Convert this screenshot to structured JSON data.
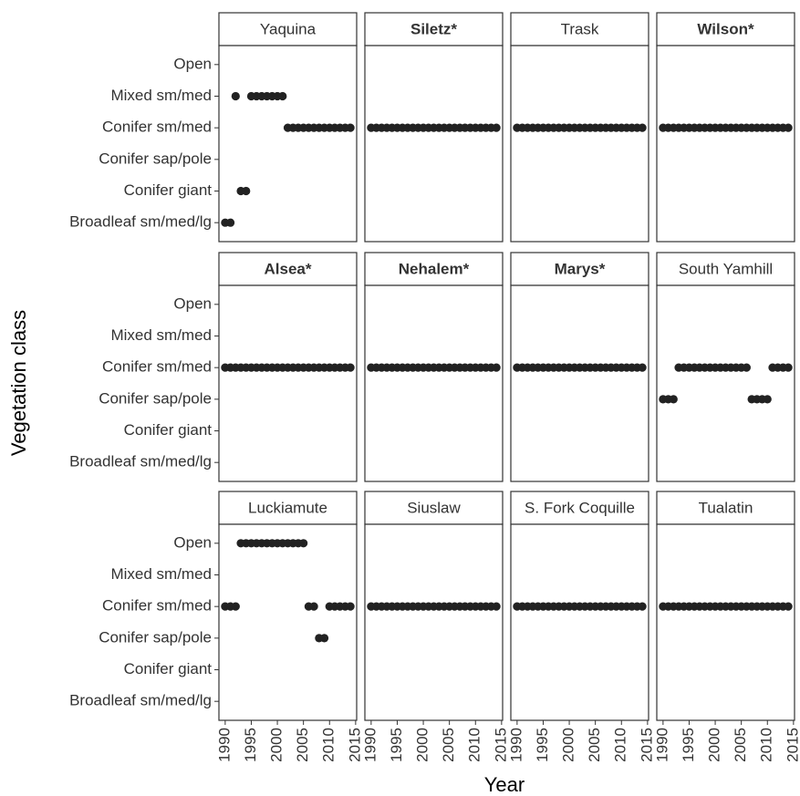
{
  "chart_data": {
    "type": "dot",
    "xlabel": "Year",
    "ylabel": "Vegetation class",
    "color": "#222222",
    "categories": [
      "Open",
      "Mixed sm/med",
      "Conifer sm/med",
      "Conifer sap/pole",
      "Conifer giant",
      "Broadleaf sm/med/lg"
    ],
    "xlim": [
      1988.8,
      2015.2
    ],
    "xticks": [
      1990,
      1995,
      2000,
      2005,
      2010,
      2015
    ],
    "x": [
      1990,
      1991,
      1992,
      1993,
      1994,
      1995,
      1996,
      1997,
      1998,
      1999,
      2000,
      2001,
      2002,
      2003,
      2004,
      2005,
      2006,
      2007,
      2008,
      2009,
      2010,
      2011,
      2012,
      2013,
      2014
    ],
    "panels": [
      {
        "title": "Yaquina",
        "bold": false,
        "values": [
          "Broadleaf sm/med/lg",
          "Broadleaf sm/med/lg",
          "Mixed sm/med",
          "Conifer giant",
          "Conifer giant",
          "Mixed sm/med",
          "Mixed sm/med",
          "Mixed sm/med",
          "Mixed sm/med",
          "Mixed sm/med",
          "Mixed sm/med",
          "Mixed sm/med",
          "Conifer sm/med",
          "Conifer sm/med",
          "Conifer sm/med",
          "Conifer sm/med",
          "Conifer sm/med",
          "Conifer sm/med",
          "Conifer sm/med",
          "Conifer sm/med",
          "Conifer sm/med",
          "Conifer sm/med",
          "Conifer sm/med",
          "Conifer sm/med",
          "Conifer sm/med"
        ]
      },
      {
        "title": "Siletz*",
        "bold": true,
        "values": [
          "Conifer sm/med",
          "Conifer sm/med",
          "Conifer sm/med",
          "Conifer sm/med",
          "Conifer sm/med",
          "Conifer sm/med",
          "Conifer sm/med",
          "Conifer sm/med",
          "Conifer sm/med",
          "Conifer sm/med",
          "Conifer sm/med",
          "Conifer sm/med",
          "Conifer sm/med",
          "Conifer sm/med",
          "Conifer sm/med",
          "Conifer sm/med",
          "Conifer sm/med",
          "Conifer sm/med",
          "Conifer sm/med",
          "Conifer sm/med",
          "Conifer sm/med",
          "Conifer sm/med",
          "Conifer sm/med",
          "Conifer sm/med",
          "Conifer sm/med"
        ]
      },
      {
        "title": "Trask",
        "bold": false,
        "values": [
          "Conifer sm/med",
          "Conifer sm/med",
          "Conifer sm/med",
          "Conifer sm/med",
          "Conifer sm/med",
          "Conifer sm/med",
          "Conifer sm/med",
          "Conifer sm/med",
          "Conifer sm/med",
          "Conifer sm/med",
          "Conifer sm/med",
          "Conifer sm/med",
          "Conifer sm/med",
          "Conifer sm/med",
          "Conifer sm/med",
          "Conifer sm/med",
          "Conifer sm/med",
          "Conifer sm/med",
          "Conifer sm/med",
          "Conifer sm/med",
          "Conifer sm/med",
          "Conifer sm/med",
          "Conifer sm/med",
          "Conifer sm/med",
          "Conifer sm/med"
        ]
      },
      {
        "title": "Wilson*",
        "bold": true,
        "values": [
          "Conifer sm/med",
          "Conifer sm/med",
          "Conifer sm/med",
          "Conifer sm/med",
          "Conifer sm/med",
          "Conifer sm/med",
          "Conifer sm/med",
          "Conifer sm/med",
          "Conifer sm/med",
          "Conifer sm/med",
          "Conifer sm/med",
          "Conifer sm/med",
          "Conifer sm/med",
          "Conifer sm/med",
          "Conifer sm/med",
          "Conifer sm/med",
          "Conifer sm/med",
          "Conifer sm/med",
          "Conifer sm/med",
          "Conifer sm/med",
          "Conifer sm/med",
          "Conifer sm/med",
          "Conifer sm/med",
          "Conifer sm/med",
          "Conifer sm/med"
        ]
      },
      {
        "title": "Alsea*",
        "bold": true,
        "values": [
          "Conifer sm/med",
          "Conifer sm/med",
          "Conifer sm/med",
          "Conifer sm/med",
          "Conifer sm/med",
          "Conifer sm/med",
          "Conifer sm/med",
          "Conifer sm/med",
          "Conifer sm/med",
          "Conifer sm/med",
          "Conifer sm/med",
          "Conifer sm/med",
          "Conifer sm/med",
          "Conifer sm/med",
          "Conifer sm/med",
          "Conifer sm/med",
          "Conifer sm/med",
          "Conifer sm/med",
          "Conifer sm/med",
          "Conifer sm/med",
          "Conifer sm/med",
          "Conifer sm/med",
          "Conifer sm/med",
          "Conifer sm/med",
          "Conifer sm/med"
        ]
      },
      {
        "title": "Nehalem*",
        "bold": true,
        "values": [
          "Conifer sm/med",
          "Conifer sm/med",
          "Conifer sm/med",
          "Conifer sm/med",
          "Conifer sm/med",
          "Conifer sm/med",
          "Conifer sm/med",
          "Conifer sm/med",
          "Conifer sm/med",
          "Conifer sm/med",
          "Conifer sm/med",
          "Conifer sm/med",
          "Conifer sm/med",
          "Conifer sm/med",
          "Conifer sm/med",
          "Conifer sm/med",
          "Conifer sm/med",
          "Conifer sm/med",
          "Conifer sm/med",
          "Conifer sm/med",
          "Conifer sm/med",
          "Conifer sm/med",
          "Conifer sm/med",
          "Conifer sm/med",
          "Conifer sm/med"
        ]
      },
      {
        "title": "Marys*",
        "bold": true,
        "values": [
          "Conifer sm/med",
          "Conifer sm/med",
          "Conifer sm/med",
          "Conifer sm/med",
          "Conifer sm/med",
          "Conifer sm/med",
          "Conifer sm/med",
          "Conifer sm/med",
          "Conifer sm/med",
          "Conifer sm/med",
          "Conifer sm/med",
          "Conifer sm/med",
          "Conifer sm/med",
          "Conifer sm/med",
          "Conifer sm/med",
          "Conifer sm/med",
          "Conifer sm/med",
          "Conifer sm/med",
          "Conifer sm/med",
          "Conifer sm/med",
          "Conifer sm/med",
          "Conifer sm/med",
          "Conifer sm/med",
          "Conifer sm/med",
          "Conifer sm/med"
        ]
      },
      {
        "title": "South Yamhill",
        "bold": false,
        "values": [
          "Conifer sap/pole",
          "Conifer sap/pole",
          "Conifer sap/pole",
          "Conifer sm/med",
          "Conifer sm/med",
          "Conifer sm/med",
          "Conifer sm/med",
          "Conifer sm/med",
          "Conifer sm/med",
          "Conifer sm/med",
          "Conifer sm/med",
          "Conifer sm/med",
          "Conifer sm/med",
          "Conifer sm/med",
          "Conifer sm/med",
          "Conifer sm/med",
          "Conifer sm/med",
          "Conifer sap/pole",
          "Conifer sap/pole",
          "Conifer sap/pole",
          "Conifer sap/pole",
          "Conifer sm/med",
          "Conifer sm/med",
          "Conifer sm/med",
          "Conifer sm/med"
        ]
      },
      {
        "title": "Luckiamute",
        "bold": false,
        "values": [
          "Conifer sm/med",
          "Conifer sm/med",
          "Conifer sm/med",
          "Open",
          "Open",
          "Open",
          "Open",
          "Open",
          "Open",
          "Open",
          "Open",
          "Open",
          "Open",
          "Open",
          "Open",
          "Open",
          "Conifer sm/med",
          "Conifer sm/med",
          "Conifer sap/pole",
          "Conifer sap/pole",
          "Conifer sm/med",
          "Conifer sm/med",
          "Conifer sm/med",
          "Conifer sm/med",
          "Conifer sm/med"
        ]
      },
      {
        "title": "Siuslaw",
        "bold": false,
        "values": [
          "Conifer sm/med",
          "Conifer sm/med",
          "Conifer sm/med",
          "Conifer sm/med",
          "Conifer sm/med",
          "Conifer sm/med",
          "Conifer sm/med",
          "Conifer sm/med",
          "Conifer sm/med",
          "Conifer sm/med",
          "Conifer sm/med",
          "Conifer sm/med",
          "Conifer sm/med",
          "Conifer sm/med",
          "Conifer sm/med",
          "Conifer sm/med",
          "Conifer sm/med",
          "Conifer sm/med",
          "Conifer sm/med",
          "Conifer sm/med",
          "Conifer sm/med",
          "Conifer sm/med",
          "Conifer sm/med",
          "Conifer sm/med",
          "Conifer sm/med"
        ]
      },
      {
        "title": "S. Fork Coquille",
        "bold": false,
        "values": [
          "Conifer sm/med",
          "Conifer sm/med",
          "Conifer sm/med",
          "Conifer sm/med",
          "Conifer sm/med",
          "Conifer sm/med",
          "Conifer sm/med",
          "Conifer sm/med",
          "Conifer sm/med",
          "Conifer sm/med",
          "Conifer sm/med",
          "Conifer sm/med",
          "Conifer sm/med",
          "Conifer sm/med",
          "Conifer sm/med",
          "Conifer sm/med",
          "Conifer sm/med",
          "Conifer sm/med",
          "Conifer sm/med",
          "Conifer sm/med",
          "Conifer sm/med",
          "Conifer sm/med",
          "Conifer sm/med",
          "Conifer sm/med",
          "Conifer sm/med"
        ]
      },
      {
        "title": "Tualatin",
        "bold": false,
        "values": [
          "Conifer sm/med",
          "Conifer sm/med",
          "Conifer sm/med",
          "Conifer sm/med",
          "Conifer sm/med",
          "Conifer sm/med",
          "Conifer sm/med",
          "Conifer sm/med",
          "Conifer sm/med",
          "Conifer sm/med",
          "Conifer sm/med",
          "Conifer sm/med",
          "Conifer sm/med",
          "Conifer sm/med",
          "Conifer sm/med",
          "Conifer sm/med",
          "Conifer sm/med",
          "Conifer sm/med",
          "Conifer sm/med",
          "Conifer sm/med",
          "Conifer sm/med",
          "Conifer sm/med",
          "Conifer sm/med",
          "Conifer sm/med",
          "Conifer sm/med"
        ]
      }
    ]
  }
}
